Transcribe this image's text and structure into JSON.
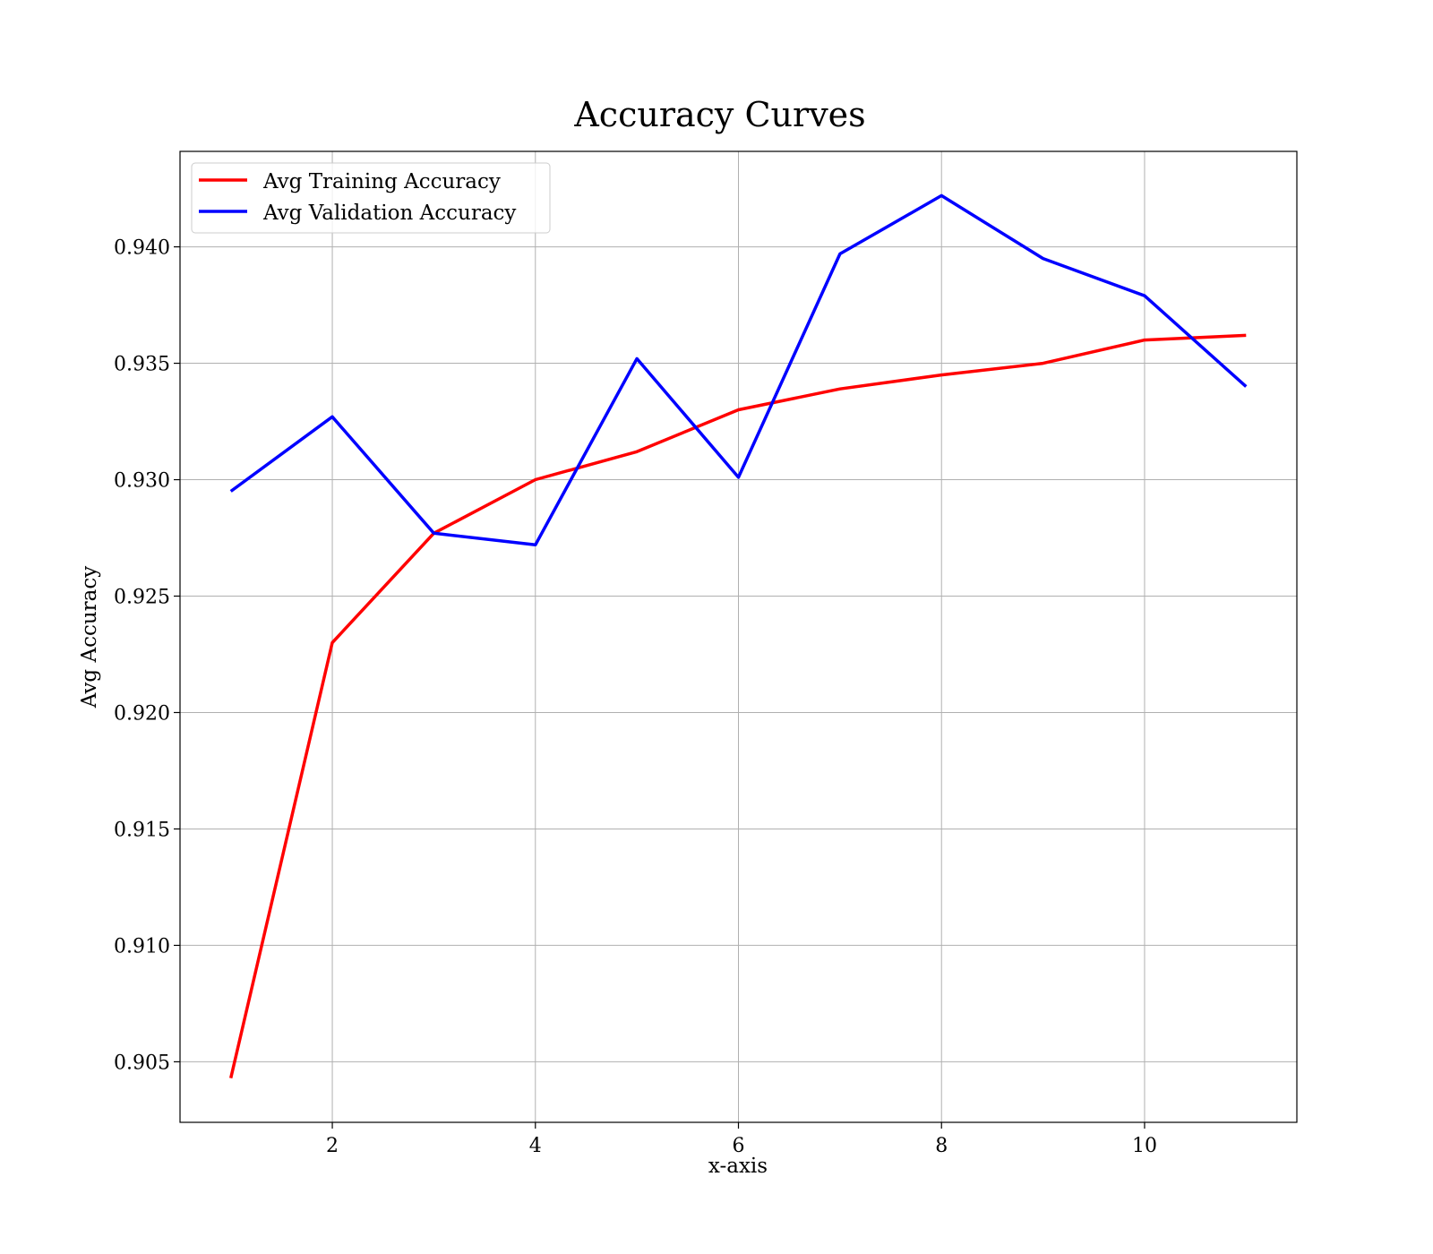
{
  "chart_data": {
    "type": "line",
    "title": "Accuracy Curves",
    "xlabel": "x-axis",
    "ylabel": "Avg Accuracy",
    "x": [
      1,
      2,
      3,
      4,
      5,
      6,
      7,
      8,
      9,
      10,
      11
    ],
    "xlim": [
      0.5,
      11.5
    ],
    "ylim": [
      0.9024,
      0.9441
    ],
    "xticks": [
      2,
      4,
      6,
      8,
      10
    ],
    "xtick_labels": [
      "2",
      "4",
      "6",
      "8",
      "10"
    ],
    "yticks": [
      0.905,
      0.91,
      0.915,
      0.92,
      0.925,
      0.93,
      0.935,
      0.94
    ],
    "ytick_labels": [
      "0.905",
      "0.910",
      "0.915",
      "0.920",
      "0.925",
      "0.930",
      "0.935",
      "0.940"
    ],
    "grid": true,
    "legend_position": "upper-left",
    "series": [
      {
        "name": "Avg Training Accuracy",
        "color": "#ff0000",
        "values": [
          0.9043,
          0.923,
          0.9277,
          0.93,
          0.9312,
          0.933,
          0.9339,
          0.9345,
          0.935,
          0.936,
          0.9362
        ]
      },
      {
        "name": "Avg Validation Accuracy",
        "color": "#0000ff",
        "values": [
          0.9295,
          0.9327,
          0.9277,
          0.9272,
          0.9352,
          0.9301,
          0.9397,
          0.9422,
          0.9395,
          0.9379,
          0.934
        ]
      }
    ]
  }
}
